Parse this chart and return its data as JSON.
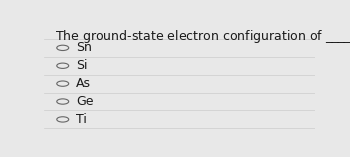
{
  "background_color": "#e8e8e8",
  "options": [
    "Sn",
    "Si",
    "As",
    "Ge",
    "Ti"
  ],
  "text_color": "#1a1a1a",
  "circle_color": "#666666",
  "font_size_question": 9.0,
  "font_size_options": 9.0,
  "separator_color": "#cccccc",
  "separator_linewidth": 0.5
}
